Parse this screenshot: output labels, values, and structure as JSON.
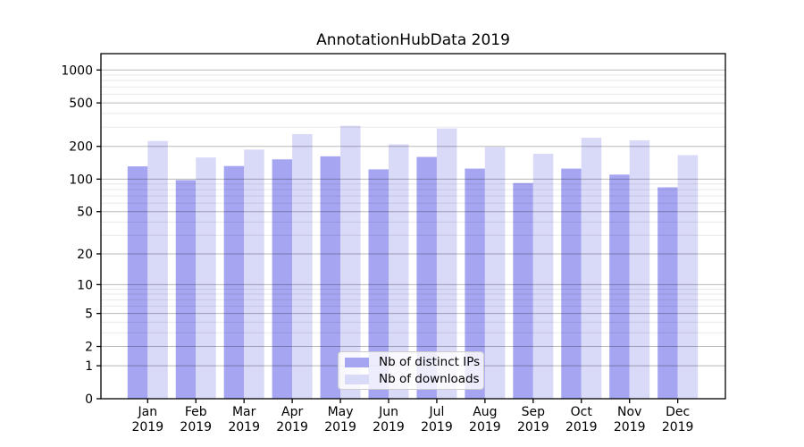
{
  "figure": {
    "title": "AnnotationHubData 2019"
  },
  "chart_data": {
    "type": "bar",
    "title": "AnnotationHubData 2019",
    "xlabel": "",
    "ylabel": "",
    "categories": [
      "Jan 2019",
      "Feb 2019",
      "Mar 2019",
      "Apr 2019",
      "May 2019",
      "Jun 2019",
      "Jul 2019",
      "Aug 2019",
      "Sep 2019",
      "Oct 2019",
      "Nov 2019",
      "Dec 2019"
    ],
    "series": [
      {
        "name": "Nb of distinct IPs",
        "color": "#a5a5f2",
        "values": [
          131,
          98,
          132,
          152,
          162,
          123,
          160,
          125,
          92,
          125,
          110,
          84
        ]
      },
      {
        "name": "Nb of downloads",
        "color": "#d9d9f8",
        "values": [
          224,
          158,
          187,
          259,
          309,
          209,
          292,
          197,
          171,
          240,
          227,
          166
        ]
      }
    ],
    "yscale": "log1p",
    "ylim": [
      0,
      1410
    ],
    "y_ticks": [
      0,
      1,
      2,
      5,
      10,
      20,
      50,
      100,
      200,
      500,
      1000
    ],
    "y_minor_ticks": [
      3,
      4,
      6,
      7,
      8,
      9,
      30,
      40,
      60,
      70,
      80,
      90,
      300,
      400,
      600,
      700,
      800,
      900
    ],
    "grid": "horizontal major and minor gridlines drawn over bars",
    "legend_position": "lower center inside axes",
    "colors": {
      "major_grid": "rgba(0,0,0,0.28)",
      "minor_grid": "rgba(0,0,0,0.09)",
      "axis": "#000000",
      "text": "#000000"
    }
  }
}
